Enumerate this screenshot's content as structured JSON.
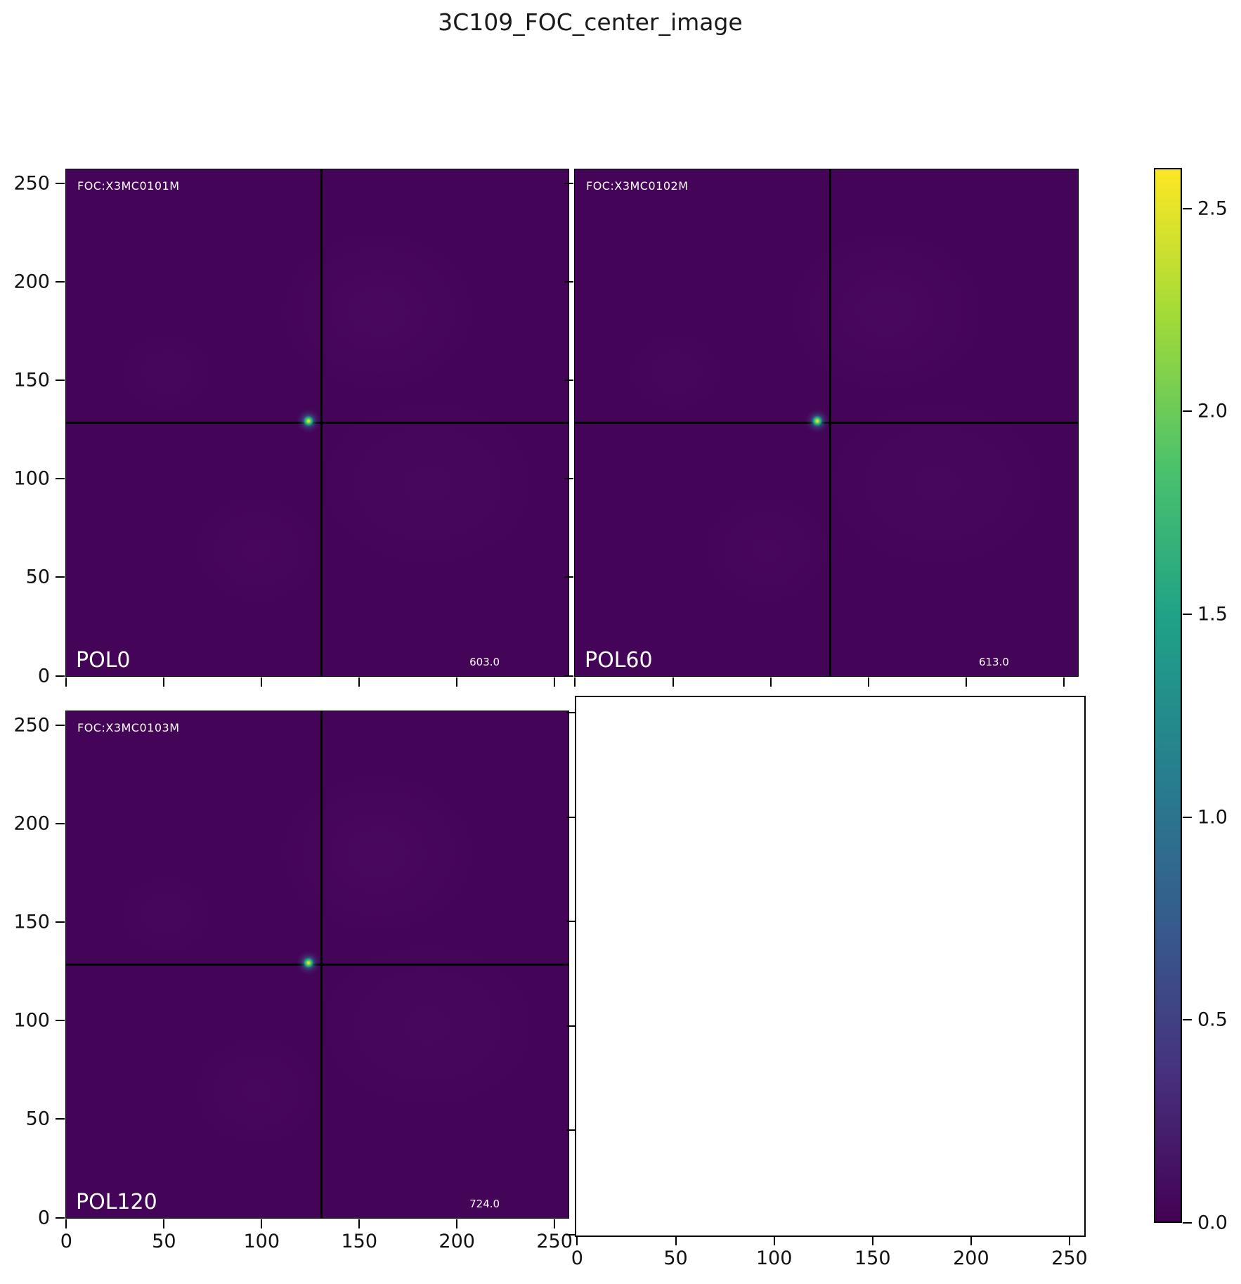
{
  "figure": {
    "title": "3C109_FOC_center_image"
  },
  "panels": {
    "pol0": {
      "foc_id": "FOC:X3MC0101M",
      "pol_label": "POL0",
      "value_label": "603.0"
    },
    "pol60": {
      "foc_id": "FOC:X3MC0102M",
      "pol_label": "POL60",
      "value_label": "613.0"
    },
    "pol120": {
      "foc_id": "FOC:X3MC0103M",
      "pol_label": "POL120",
      "value_label": "724.0"
    }
  },
  "axes": {
    "tick_values": [
      0,
      50,
      100,
      150,
      200,
      250
    ],
    "x_tick_labels": [
      "0",
      "50",
      "100",
      "150",
      "200",
      "250"
    ],
    "y_tick_labels": [
      "0",
      "50",
      "100",
      "150",
      "200",
      "250"
    ],
    "axis_max": 258
  },
  "colorbar": {
    "colormap": "viridis",
    "vmin": 0.0,
    "vmax": 2.6,
    "tick_values": [
      0.0,
      0.5,
      1.0,
      1.5,
      2.0,
      2.5
    ],
    "tick_labels": [
      "0.0",
      "0.5",
      "1.0",
      "1.5",
      "2.0",
      "2.5"
    ]
  },
  "colors": {
    "background": "#ffffff",
    "image_background": "#440457",
    "crosshair": "#000000",
    "annotation_text": "#ffffff",
    "viridis_stops": [
      "#440154",
      "#46327e",
      "#365c8d",
      "#277f8e",
      "#1fa187",
      "#4ac16d",
      "#a0da39",
      "#fde725"
    ]
  },
  "chart_data": {
    "type": "heatmap",
    "title": "3C109_FOC_center_image",
    "layout": "2x2 grid of image subplots, bottom-right axes empty, shared colorbar at right",
    "colormap": "viridis",
    "colorbar_range": [
      0.0,
      2.6
    ],
    "colorbar_ticks": [
      0.0,
      0.5,
      1.0,
      1.5,
      2.0,
      2.5
    ],
    "x_range": [
      0,
      258
    ],
    "y_range": [
      0,
      258
    ],
    "x_ticks": [
      0,
      50,
      100,
      150,
      200,
      250
    ],
    "y_ticks": [
      0,
      50,
      100,
      150,
      200,
      250
    ],
    "panels": [
      {
        "name": "POL0",
        "image_id": "FOC:X3MC0101M",
        "annotation_value": 603.0,
        "crosshair_x": 131,
        "crosshair_y": 130,
        "source_peak": {
          "x": 124,
          "y": 130,
          "approx_peak_intensity": 2.6
        },
        "background_level": 0.05
      },
      {
        "name": "POL60",
        "image_id": "FOC:X3MC0102M",
        "annotation_value": 613.0,
        "crosshair_x": 131,
        "crosshair_y": 130,
        "source_peak": {
          "x": 124,
          "y": 130,
          "approx_peak_intensity": 2.6
        },
        "background_level": 0.05
      },
      {
        "name": "POL120",
        "image_id": "FOC:X3MC0103M",
        "annotation_value": 724.0,
        "crosshair_x": 131,
        "crosshair_y": 130,
        "source_peak": {
          "x": 124,
          "y": 130,
          "approx_peak_intensity": 2.6
        },
        "background_level": 0.05
      },
      {
        "name": "empty",
        "image_id": null,
        "annotation_value": null
      }
    ]
  }
}
